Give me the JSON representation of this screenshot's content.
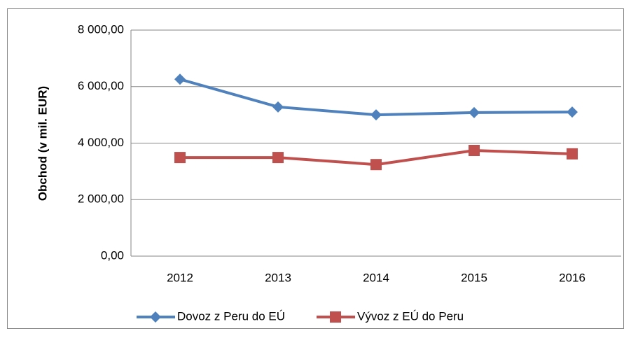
{
  "chart_data": {
    "type": "line",
    "ylabel": "Obchod (v mil. EUR)",
    "categories": [
      "2012",
      "2013",
      "2014",
      "2015",
      "2016"
    ],
    "series": [
      {
        "name": "Dovoz z Peru do EÚ",
        "color": "#4f81bd",
        "marker": "diamond",
        "values": [
          6260,
          5280,
          5000,
          5080,
          5100
        ]
      },
      {
        "name": "Vývoz z EÚ do Peru",
        "color": "#c0504d",
        "marker": "square",
        "values": [
          3490,
          3490,
          3240,
          3740,
          3620
        ]
      }
    ],
    "ylim": [
      0,
      8000
    ],
    "yticks": [
      {
        "value": 0,
        "label": "0,00"
      },
      {
        "value": 2000,
        "label": "2 000,00"
      },
      {
        "value": 4000,
        "label": "4 000,00"
      },
      {
        "value": 6000,
        "label": "6 000,00"
      },
      {
        "value": 8000,
        "label": "8 000,00"
      }
    ],
    "grid": true,
    "legend": "bottom"
  }
}
